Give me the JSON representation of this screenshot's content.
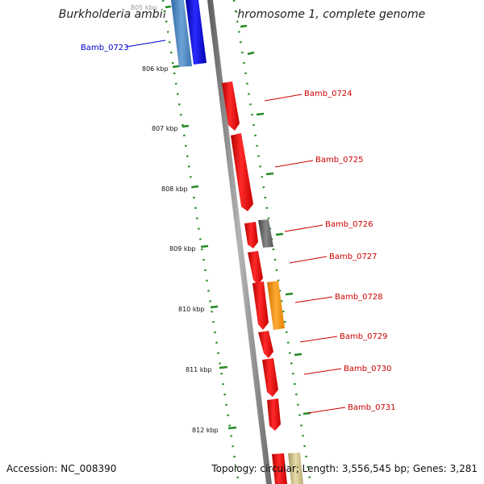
{
  "header": {
    "title": "Burkholderia ambifaria AMMD chromosome 1, complete genome"
  },
  "footer": {
    "accession": "Accession: NC_008390",
    "stats": "Topology: circular; Length: 3,556,545 bp; Genes: 3,281"
  },
  "ruler": {
    "tick_labels": [
      "805 kbp",
      "806 kbp",
      "807 kbp",
      "808 kbp",
      "809 kbp",
      "810 kbp",
      "811 kbp",
      "812 kbp"
    ]
  },
  "genes": [
    {
      "name": "Bamb_0723",
      "color": "#0000cc",
      "label_color": "#0000cc",
      "strand": "forward"
    },
    {
      "name": "Bamb_0724",
      "color": "#ff0000",
      "label_color": "#cc0000",
      "strand": "reverse"
    },
    {
      "name": "Bamb_0725",
      "color": "#ff0000",
      "label_color": "#cc0000",
      "strand": "reverse"
    },
    {
      "name": "Bamb_0726",
      "color": "#ff0000",
      "label_color": "#cc0000",
      "strand": "reverse"
    },
    {
      "name": "Bamb_0727",
      "color": "#ff0000",
      "label_color": "#cc0000",
      "strand": "reverse"
    },
    {
      "name": "Bamb_0728",
      "color": "#ff0000",
      "label_color": "#cc0000",
      "strand": "reverse"
    },
    {
      "name": "Bamb_0729",
      "color": "#ff0000",
      "label_color": "#cc0000",
      "strand": "reverse"
    },
    {
      "name": "Bamb_0730",
      "color": "#ff0000",
      "label_color": "#cc0000",
      "strand": "reverse"
    },
    {
      "name": "Bamb_0731",
      "color": "#ff0000",
      "label_color": "#cc0000",
      "strand": "reverse"
    }
  ],
  "colors": {
    "backbone": "#888888",
    "ruler_dots": "#228b22",
    "forward_gene": "#0000ff",
    "reverse_gene": "#ff0000",
    "steelblue_feature": "#4a86c0",
    "gray_feature": "#6e6e6e",
    "orange_feature": "#ff9900",
    "tan_feature": "#cfc38a"
  }
}
